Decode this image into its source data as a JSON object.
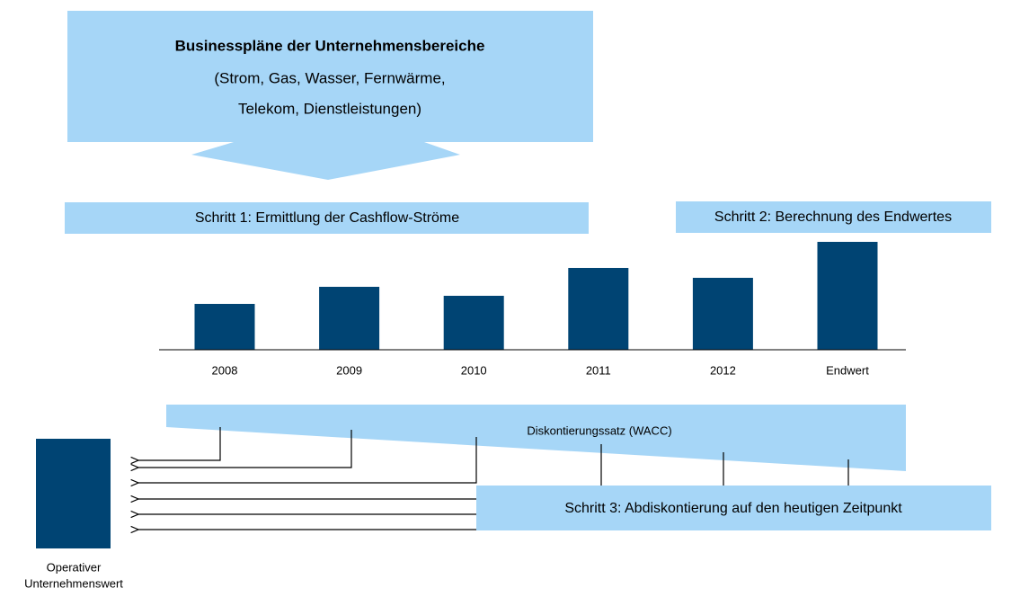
{
  "top_box": {
    "title": "Businesspläne der Unternehmensbereiche",
    "lines": [
      "(Strom, Gas, Wasser, Fernwärme,",
      "Telekom, Dienstleistungen)"
    ]
  },
  "steps": [
    "Schritt 1: Ermittlung der Cashflow-Ströme",
    "Schritt 2: Berechnung des Endwertes",
    "Schritt 3: Abdiskontierung auf den heutigen Zeitpunkt"
  ],
  "discount_label": "Diskontierungssatz (WACC)",
  "result_label": [
    "Operativer",
    "Unternehmenswert"
  ],
  "chart_data": {
    "type": "bar",
    "categories": [
      "2008",
      "2009",
      "2010",
      "2011",
      "2012",
      "Endwert"
    ],
    "values": [
      51,
      70,
      60,
      91,
      80,
      120
    ],
    "ylim": [
      0,
      120
    ],
    "color": "#004473"
  }
}
